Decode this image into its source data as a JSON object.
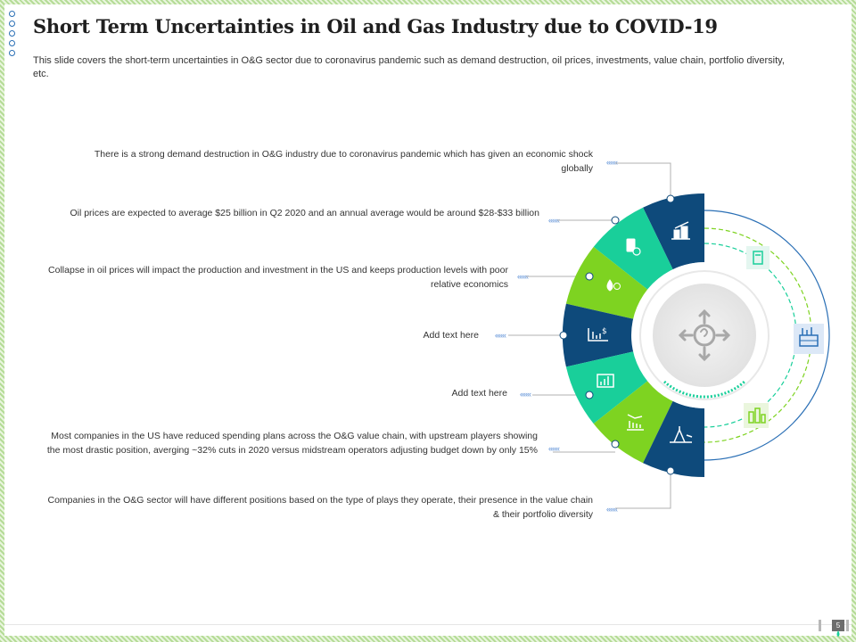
{
  "slide": {
    "title": "Short Term Uncertainties in Oil and Gas Industry due to COVID-19",
    "subtitle": "This slide covers the short-term uncertainties in O&G sector due to coronavirus pandemic such as demand destruction, oil prices, investments, value chain, portfolio diversity, etc.",
    "page_number": "5"
  },
  "points": [
    {
      "text": "There is a strong demand destruction in O&G  industry due to coronavirus pandemic which has given an economic shock globally",
      "icon": "oil-tank-icon"
    },
    {
      "text": "Oil prices are expected to average $25 billion in Q2 2020 and an annual average would be around $28-$33 billion",
      "icon": "oil-barrel-dollar-icon"
    },
    {
      "text": "Collapse in oil prices will impact the production and investment  in the US and keeps production levels with poor relative economics",
      "icon": "oil-drop-dollar-icon"
    },
    {
      "text": "Add text here",
      "icon": "dollar-bar-chart-icon"
    },
    {
      "text": "Add text here",
      "icon": "growth-chart-icon"
    },
    {
      "text": "Most companies in the US have reduced spending plans across the O&G value chain, with upstream players showing the most drastic position, averging ~32% cuts in 2020 versus midstream operators adjusting budget down by only 15%",
      "icon": "declining-chart-icon"
    },
    {
      "text": "Companies in the O&G sector will have different positions based on the type of plays they operate, their presence in the value chain & their portfolio diversity",
      "icon": "oil-rig-icon"
    }
  ],
  "center_icon": "question-arrows-icon",
  "side_icons": [
    "fuel-pump-icon",
    "refinery-icon",
    "factory-icon"
  ],
  "arrow_glyph": "«««",
  "colors": {
    "dark_blue": "#0e4a7b",
    "teal": "#19cf9a",
    "green": "#7ed321",
    "accent_blue": "#5b8fd6"
  }
}
